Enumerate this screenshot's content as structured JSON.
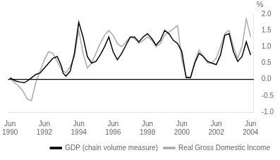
{
  "chart_data": {
    "type": "line",
    "ylabel": "%",
    "xlim": [
      1990.3,
      2004.6
    ],
    "xticks": [
      {
        "value": 1990.417,
        "label": "Jun\n1990"
      },
      {
        "value": 1992.417,
        "label": "Jun\n1992"
      },
      {
        "value": 1994.417,
        "label": "Jun\n1994"
      },
      {
        "value": 1996.417,
        "label": "Jun\n1996"
      },
      {
        "value": 1998.417,
        "label": "Jun\n1998"
      },
      {
        "value": 2000.417,
        "label": "Jun\n2000"
      },
      {
        "value": 2002.417,
        "label": "Jun\n2002"
      },
      {
        "value": 2004.417,
        "label": "Jun\n2004"
      }
    ],
    "ylim": [
      -1.0,
      2.0
    ],
    "yticks": [
      {
        "value": -1.0,
        "label": "-1.0"
      },
      -0.5,
      {
        "value": 0.0,
        "label": "0.0"
      },
      0.5,
      {
        "value": 1.0,
        "label": "1.0"
      },
      1.5,
      {
        "value": 2.0,
        "label": "2.0"
      }
    ],
    "grid": false,
    "legend": "lower right",
    "hlines": [
      {
        "y": 0,
        "color": "#000000"
      }
    ],
    "series": [
      {
        "name": "GDP (chain volume measure)",
        "color": "#000000",
        "x": [
          1990.417,
          1990.75,
          1991.0,
          1991.25,
          1991.417,
          1991.667,
          1991.917,
          1992.167,
          1992.417,
          1992.667,
          1992.917,
          1993.167,
          1993.417,
          1993.5,
          1993.667,
          1993.917,
          1994.167,
          1994.417,
          1994.667,
          1994.917,
          1995.167,
          1995.417,
          1995.667,
          1995.917,
          1996.167,
          1996.417,
          1996.667,
          1996.917,
          1997.167,
          1997.417,
          1997.667,
          1997.917,
          1998.167,
          1998.417,
          1998.667,
          1998.917,
          1999.167,
          1999.417,
          1999.667,
          1999.917,
          2000.167,
          2000.417,
          2000.667,
          2000.917,
          2001.167,
          2001.417,
          2001.667,
          2001.917,
          2002.167,
          2002.417,
          2002.667,
          2002.917,
          2003.167,
          2003.417,
          2003.667,
          2003.917,
          2004.167,
          2004.417
        ],
        "values": [
          0.05,
          -0.05,
          -0.08,
          -0.1,
          -0.05,
          0.05,
          0.15,
          0.2,
          0.35,
          0.5,
          0.65,
          0.7,
          0.4,
          0.2,
          0.1,
          0.25,
          0.8,
          1.75,
          1.3,
          0.7,
          0.5,
          0.55,
          0.75,
          1.0,
          1.3,
          0.85,
          0.6,
          0.8,
          1.05,
          1.3,
          1.3,
          1.15,
          1.3,
          1.4,
          1.25,
          1.05,
          1.2,
          1.5,
          1.4,
          1.2,
          1.1,
          0.85,
          0.05,
          0.05,
          0.5,
          0.8,
          0.7,
          0.55,
          0.5,
          0.45,
          0.75,
          1.35,
          1.4,
          0.85,
          0.55,
          0.7,
          1.15,
          0.75
        ]
      },
      {
        "name": "Real Gross Domestic Income",
        "color": "#aaaaaa",
        "x": [
          1990.417,
          1990.667,
          1990.917,
          1991.167,
          1991.417,
          1991.667,
          1991.917,
          1992.167,
          1992.417,
          1992.667,
          1992.917,
          1993.167,
          1993.417,
          1993.667,
          1993.917,
          1994.167,
          1994.417,
          1994.667,
          1994.917,
          1995.167,
          1995.417,
          1995.667,
          1995.917,
          1996.167,
          1996.417,
          1996.667,
          1996.917,
          1997.167,
          1997.417,
          1997.667,
          1997.917,
          1998.167,
          1998.417,
          1998.667,
          1998.917,
          1999.167,
          1999.417,
          1999.667,
          1999.917,
          2000.167,
          2000.417,
          2000.667,
          2000.917,
          2001.167,
          2001.417,
          2001.667,
          2001.917,
          2002.167,
          2002.417,
          2002.667,
          2002.917,
          2003.167,
          2003.417,
          2003.667,
          2003.917,
          2004.167,
          2004.417
        ],
        "values": [
          0.05,
          -0.1,
          -0.2,
          -0.35,
          -0.6,
          -0.65,
          -0.1,
          0.25,
          0.6,
          0.85,
          0.8,
          0.55,
          0.3,
          0.2,
          0.4,
          0.7,
          1.5,
          0.8,
          0.35,
          0.5,
          0.8,
          1.1,
          1.35,
          1.5,
          1.35,
          1.1,
          1.0,
          1.15,
          1.3,
          1.25,
          1.1,
          1.2,
          1.3,
          1.2,
          1.0,
          1.1,
          1.35,
          1.45,
          1.55,
          1.65,
          0.6,
          0.1,
          0.05,
          0.55,
          0.9,
          0.7,
          0.5,
          0.5,
          0.65,
          1.0,
          1.4,
          1.5,
          1.0,
          0.65,
          1.0,
          1.85,
          1.3
        ]
      }
    ]
  }
}
